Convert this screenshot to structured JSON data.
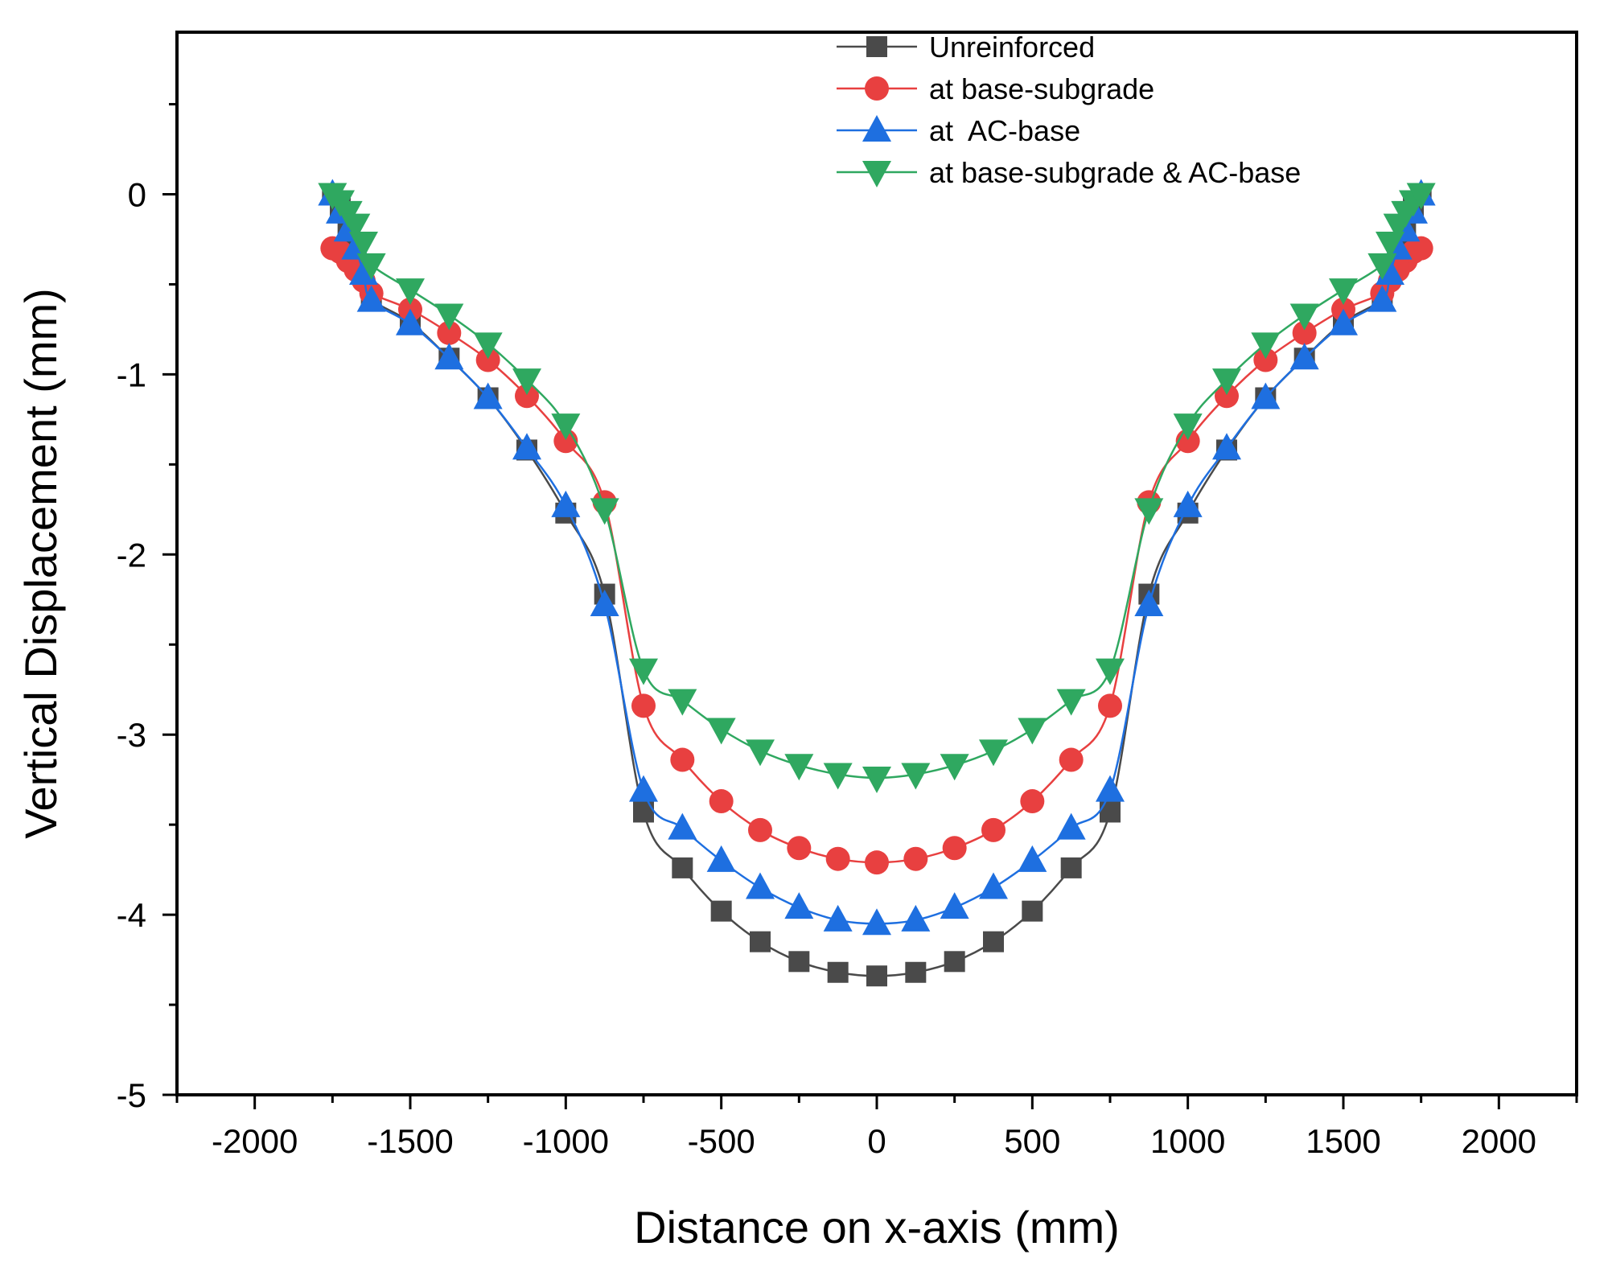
{
  "chart_data": {
    "type": "line",
    "title": "",
    "xlabel": "Distance on x-axis (mm)",
    "ylabel": "Vertical Displacement (mm)",
    "xlim": [
      -2250,
      2250
    ],
    "ylim": [
      -5,
      0.9
    ],
    "xticks": [
      -2000,
      -1500,
      -1000,
      -500,
      0,
      500,
      1000,
      1500,
      2000
    ],
    "xtick_labels": [
      "-2000",
      "-1500",
      "-1000",
      "-500",
      "0",
      "500",
      "1000",
      "1500",
      "2000"
    ],
    "yticks": [
      -5,
      -4,
      -3,
      -2,
      -1,
      0
    ],
    "ytick_labels": [
      "-5",
      "-4",
      "-3",
      "-2",
      "-1",
      "0"
    ],
    "legend_position": "top-right",
    "series": [
      {
        "name": "Unreinforced",
        "color": "#4a4a4a",
        "marker": "square",
        "x": [
          -1750,
          -1725,
          -1700,
          -1675,
          -1650,
          -1625,
          -1500,
          -1375,
          -1250,
          -1125,
          -1000,
          -875,
          -750,
          -625,
          -500,
          -375,
          -250,
          -125,
          0,
          125,
          250,
          375,
          500,
          625,
          750,
          875,
          1000,
          1125,
          1250,
          1375,
          1500,
          1625,
          1650,
          1675,
          1700,
          1725,
          1750
        ],
        "y": [
          0,
          -0.07,
          -0.18,
          -0.29,
          -0.42,
          -0.58,
          -0.71,
          -0.91,
          -1.13,
          -1.42,
          -1.77,
          -2.22,
          -3.43,
          -3.74,
          -3.98,
          -4.15,
          -4.26,
          -4.32,
          -4.34,
          -4.32,
          -4.26,
          -4.15,
          -3.98,
          -3.74,
          -3.43,
          -2.22,
          -1.77,
          -1.42,
          -1.13,
          -0.91,
          -0.71,
          -0.58,
          -0.42,
          -0.29,
          -0.18,
          -0.07,
          0
        ]
      },
      {
        "name": "at base-subgrade",
        "color": "#e84040",
        "marker": "circle",
        "x": [
          -1750,
          -1725,
          -1700,
          -1675,
          -1650,
          -1625,
          -1500,
          -1375,
          -1250,
          -1125,
          -1000,
          -875,
          -750,
          -625,
          -500,
          -375,
          -250,
          -125,
          0,
          125,
          250,
          375,
          500,
          625,
          750,
          875,
          1000,
          1125,
          1250,
          1375,
          1500,
          1625,
          1650,
          1675,
          1700,
          1725,
          1750
        ],
        "y": [
          -0.3,
          -0.32,
          -0.37,
          -0.42,
          -0.48,
          -0.55,
          -0.64,
          -0.77,
          -0.92,
          -1.12,
          -1.37,
          -1.71,
          -2.84,
          -3.14,
          -3.37,
          -3.53,
          -3.63,
          -3.69,
          -3.71,
          -3.69,
          -3.63,
          -3.53,
          -3.37,
          -3.14,
          -2.84,
          -1.71,
          -1.37,
          -1.12,
          -0.92,
          -0.77,
          -0.64,
          -0.55,
          -0.48,
          -0.42,
          -0.37,
          -0.32,
          -0.3
        ]
      },
      {
        "name": "at  AC-base",
        "color": "#1e6fe0",
        "marker": "triangle-up",
        "x": [
          -1750,
          -1725,
          -1700,
          -1675,
          -1650,
          -1625,
          -1500,
          -1375,
          -1250,
          -1125,
          -1000,
          -875,
          -750,
          -625,
          -500,
          -375,
          -250,
          -125,
          0,
          125,
          250,
          375,
          500,
          625,
          750,
          875,
          1000,
          1125,
          1250,
          1375,
          1500,
          1625,
          1650,
          1675,
          1700,
          1725,
          1750
        ],
        "y": [
          0,
          -0.1,
          -0.2,
          -0.3,
          -0.44,
          -0.59,
          -0.72,
          -0.91,
          -1.13,
          -1.41,
          -1.73,
          -2.28,
          -3.31,
          -3.52,
          -3.7,
          -3.85,
          -3.96,
          -4.03,
          -4.05,
          -4.03,
          -3.96,
          -3.85,
          -3.7,
          -3.52,
          -3.31,
          -2.28,
          -1.73,
          -1.41,
          -1.13,
          -0.91,
          -0.72,
          -0.59,
          -0.44,
          -0.3,
          -0.2,
          -0.1,
          0
        ]
      },
      {
        "name": "at base-subgrade & AC-base",
        "color": "#2fa860",
        "marker": "triangle-down",
        "x": [
          -1750,
          -1725,
          -1700,
          -1675,
          -1650,
          -1625,
          -1500,
          -1375,
          -1250,
          -1125,
          -1000,
          -875,
          -750,
          -625,
          -500,
          -375,
          -250,
          -125,
          0,
          125,
          250,
          375,
          500,
          625,
          750,
          875,
          1000,
          1125,
          1250,
          1375,
          1500,
          1625,
          1650,
          1675,
          1700,
          1725,
          1750
        ],
        "y": [
          0,
          -0.04,
          -0.1,
          -0.17,
          -0.27,
          -0.39,
          -0.53,
          -0.67,
          -0.83,
          -1.03,
          -1.28,
          -1.75,
          -2.64,
          -2.81,
          -2.97,
          -3.09,
          -3.17,
          -3.22,
          -3.24,
          -3.22,
          -3.17,
          -3.09,
          -2.97,
          -2.81,
          -2.64,
          -1.75,
          -1.28,
          -1.03,
          -0.83,
          -0.67,
          -0.53,
          -0.39,
          -0.27,
          -0.17,
          -0.1,
          -0.04,
          0
        ]
      }
    ]
  }
}
